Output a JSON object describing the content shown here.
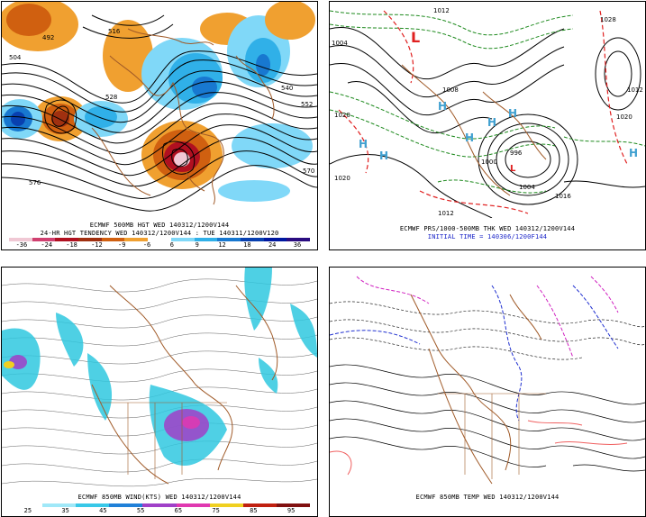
{
  "panels": {
    "p1": {
      "line1": "ECMWF 500MB HGT WED 140312/1200V144",
      "line2": "24-HR HGT TENDENCY WED 140312/1200V144 : TUE 140311/1200V120",
      "colorbar_ticks": [
        "-36",
        "-24",
        "-18",
        "-12",
        "-9",
        "-6",
        "6",
        "9",
        "12",
        "18",
        "24",
        "36"
      ],
      "colorbar_colors": [
        "#f0c8d4",
        "#d04070",
        "#b01020",
        "#a03010",
        "#d06010",
        "#f0a030",
        "#ffffff",
        "#80d8f8",
        "#30b0e8",
        "#1878d0",
        "#0840b0",
        "#0018a0",
        "#2a0c80"
      ],
      "contour_labels": [
        "492",
        "504",
        "516",
        "528",
        "540",
        "552",
        "570",
        "576"
      ]
    },
    "p2": {
      "line1": "ECMWF PRS/1000-500MB THK WED 140312/1200V144",
      "line2": "INITIAL TIME = 140306/1200F144",
      "pressure_labels": [
        "1012",
        "1020",
        "1004",
        "1008",
        "1012",
        "1016",
        "1020",
        "996",
        "1000",
        "1004",
        "1012",
        "1020",
        "1028"
      ],
      "symbols": [
        "L",
        "L",
        "H",
        "H",
        "H",
        "H",
        "H",
        "H",
        "H"
      ]
    },
    "p3": {
      "line1": "ECMWF 850MB WIND(KTS) WED 140312/1200V144",
      "colorbar_ticks": [
        "25",
        "35",
        "45",
        "55",
        "65",
        "75",
        "85",
        "95"
      ],
      "colorbar_colors": [
        "#ffffff",
        "#a0e8f8",
        "#38c8e8",
        "#2080d8",
        "#a040c8",
        "#e038b0",
        "#f0d020",
        "#c02010",
        "#801010"
      ]
    },
    "p4": {
      "line1": "ECMWF 850MB TEMP WED 140312/1200V144"
    }
  },
  "colors": {
    "coast": "#a05a28",
    "height_contour": "#000000",
    "thickness_cold": "#1e8a1e",
    "thickness_warm": "#e02020",
    "cold_temp": "#2030d0",
    "very_cold_temp": "#d020c0",
    "warm_temp": "#f06060",
    "wind_cyan": "#30c8e0",
    "wind_purple": "#a040c8"
  }
}
